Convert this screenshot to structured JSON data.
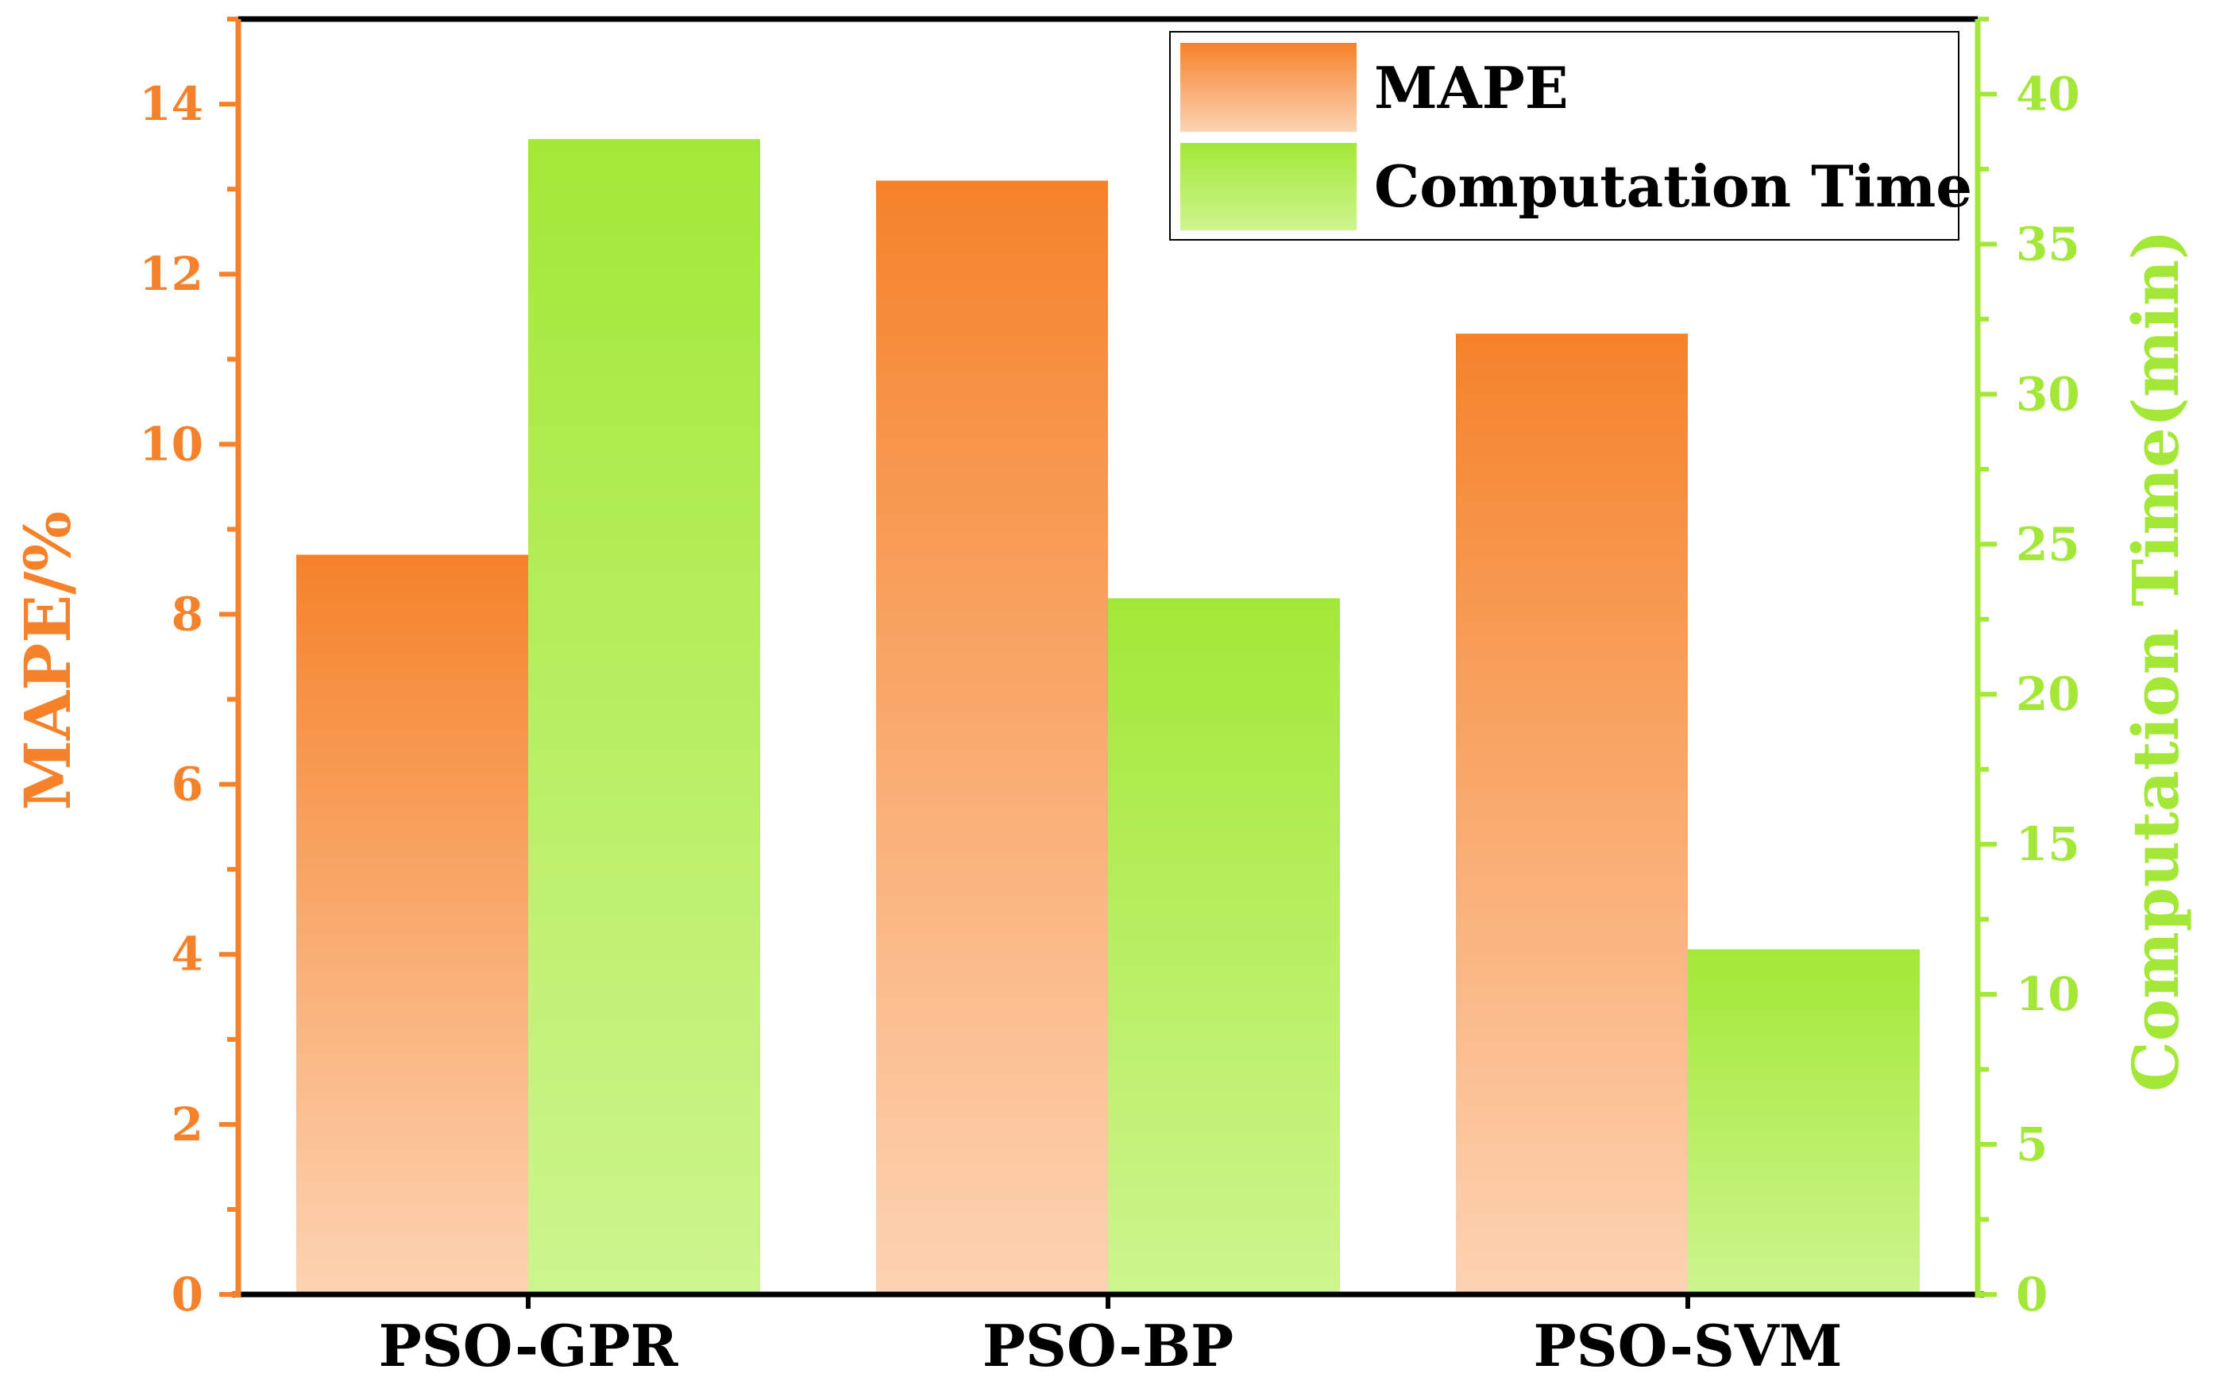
{
  "chart_data": {
    "type": "bar",
    "categories": [
      "PSO-GPR",
      "PSO-BP",
      "PSO-SVM"
    ],
    "series": [
      {
        "name": "MAPE",
        "axis": "left",
        "values": [
          8.7,
          13.1,
          11.3
        ]
      },
      {
        "name": "Computation Time",
        "axis": "right",
        "values": [
          38.5,
          23.2,
          11.5
        ]
      }
    ],
    "y_left": {
      "label": "MAPE/%",
      "range": [
        0,
        15
      ],
      "ticks": [
        0,
        2,
        4,
        6,
        8,
        10,
        12,
        14
      ]
    },
    "y_right": {
      "label": "Computation Time(min)",
      "range": [
        0,
        42.5
      ],
      "ticks": [
        0,
        5,
        10,
        15,
        20,
        25,
        30,
        35,
        40
      ]
    },
    "legend_position": "top-right",
    "grid": false
  },
  "colors": {
    "mape_top": "#f5822a",
    "mape_bottom": "#fdd3b3",
    "time_top": "#a3e837",
    "time_bottom": "#cdf58e",
    "left_axis": "#f5822a",
    "right_axis": "#a3e837"
  }
}
